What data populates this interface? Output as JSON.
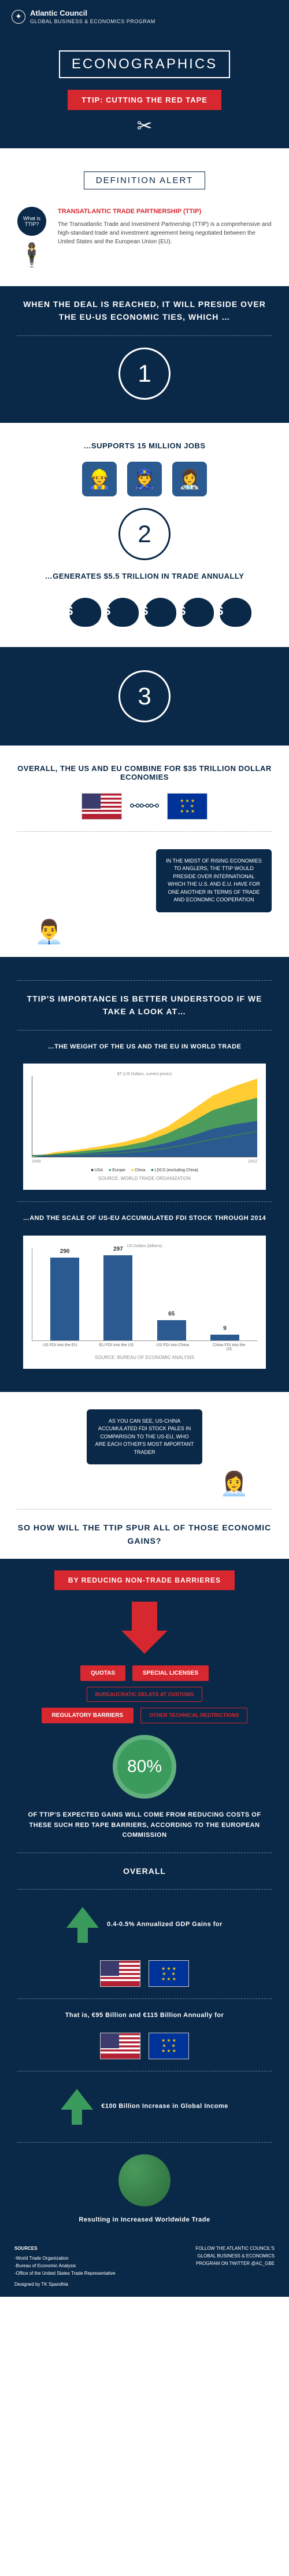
{
  "header": {
    "org": "Atlantic Council",
    "program": "GLOBAL BUSINESS & ECONOMICS PROGRAM"
  },
  "title": "ECONOGRAPHICS",
  "ribbon": "TTIP: CUTTING THE RED TAPE",
  "definition": {
    "alert": "DEFINITION ALERT",
    "bubble": "What is TTIP?",
    "label": "TRANSATLANTIC TRADE PARTNERSHIP (TTIP)",
    "body": "The Transatlantic Trade and Investment Partnership (TTIP) is a comprehensive and high-standard trade and investment agreement being negotiated between the United States and the European Union (EU)."
  },
  "preside": "WHEN THE DEAL IS REACHED, IT WILL PRESIDE OVER THE EU-US ECONOMIC TIES, WHICH …",
  "facts": {
    "n1": "1",
    "t1": "…SUPPORTS 15 MILLION JOBS",
    "n2": "2",
    "t2": "…GENERATES $5.5 TRILLION IN TRADE ANNUALLY",
    "n3": "3",
    "t3": "OVERALL, THE US AND EU COMBINE FOR $35 TRILLION DOLLAR ECONOMIES"
  },
  "bubble2": "IN THE MIDST OF RISING ECONOMIES TO ANGLERS, THE TTIP WOULD PRESIDE OVER INTERNATIONAL WHICH THE U.S. AND E.U. HAVE FOR ONE ANOTHER IN TERMS OF TRADE AND ECONOMIC COOPERATION",
  "importance": {
    "head": "TTIP'S IMPORTANCE IS BETTER UNDERSTOOD IF WE TAKE A LOOK AT…",
    "sub1": "…THE WEIGHT OF THE US AND THE EU IN WORLD TRADE",
    "sub2": "…AND THE SCALE OF US-EU ACCUMULATED FDI STOCK THROUGH 2014"
  },
  "chart1": {
    "ylabel": "$T (US Dollars, current prices)",
    "series_labels": [
      "USA",
      "Europe",
      "China",
      "LDCS (excluding China)"
    ],
    "colors": [
      "#2a5a8f",
      "#4a9b5c",
      "#ffcc33",
      "#3a7a5c"
    ],
    "source": "SOURCE: WORLD TRADE ORGANIZATION",
    "x_start": "2000",
    "x_end": "2012"
  },
  "chart2": {
    "ylabel": "US Dollars (billions)",
    "bars": [
      {
        "label": "290",
        "height": 90,
        "x": "US FDI into the EU"
      },
      {
        "label": "297",
        "height": 92,
        "x": "EU FDI into the US"
      },
      {
        "label": "65",
        "height": 22,
        "x": "US FDI into China"
      },
      {
        "label": "9",
        "height": 6,
        "x": "China FDI into the US"
      }
    ],
    "source": "SOURCE: BUREAU OF ECONOMIC ANALYSIS",
    "bar_color": "#2a5a8f"
  },
  "bubble3": "AS YOU CAN SEE, US-CHINA ACCUMULATED FDI STOCK PALES IN COMPARISON TO THE US-EU, WHO ARE EACH OTHER'S MOST IMPORTANT TRADER",
  "spur": "SO HOW WILL THE TTIP SPUR ALL OF THOSE ECONOMIC GAINS?",
  "reduce": "BY REDUCING NON-TRADE BARRIERES",
  "barriers": {
    "a": "QUOTAS",
    "b": "SPECIAL LICENSES",
    "c": "BUREAUCRATIC DELAYS AT CUSTOMS",
    "d": "REGULATORY BARRIERS",
    "e": "OTHER TECHNICAL RESTRICTIONS"
  },
  "pct": {
    "value": "80%",
    "text": "OF TTIP'S EXPECTED GAINS WILL COME FROM REDUCING COSTS OF THESE SUCH RED TAPE BARRIERS, ACCORDING TO THE EUROPEAN COMMISSION"
  },
  "overall": {
    "head": "OVERALL",
    "gdp_gains": "0.4-0.5% Annualized GDP Gains for",
    "billions": "That is, €95 Billion and €115 Billion Annually for",
    "income": "€100 Billion Increase in Global Income",
    "trade": "Resulting in Increased Worldwide Trade"
  },
  "footer": {
    "sources_h": "SOURCES",
    "sources": "-World Trade Organization\n-Bureau of Economic Analysis\n-Office of the United States Trade Representative",
    "designer": "Designed by TK Spandhla",
    "follow_h": "FOLLOW THE ATLANTIC COUNCIL'S GLOBAL BUSINESS & ECONOMICS PROGRAM ON TWITTER @AC_GBE"
  },
  "colors": {
    "navy": "#0a2847",
    "red": "#d7282f",
    "green": "#3a9b5c",
    "blue": "#2a5a8f"
  }
}
